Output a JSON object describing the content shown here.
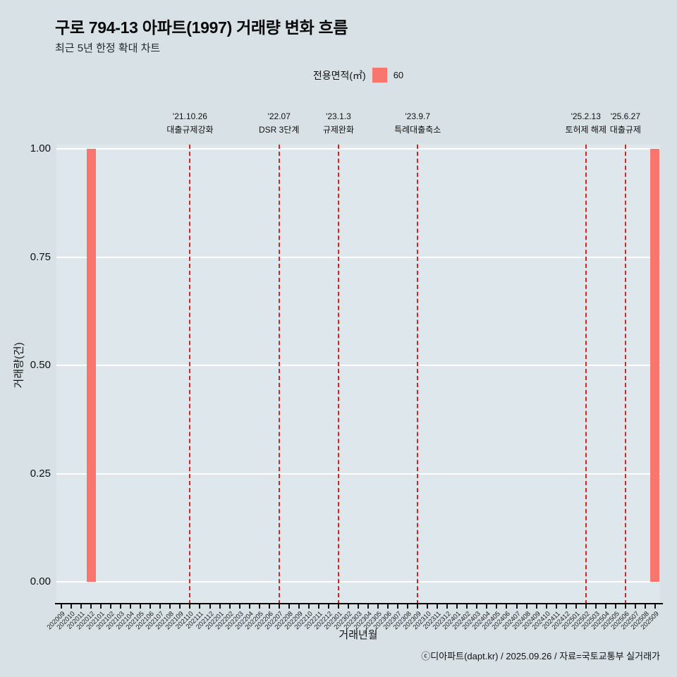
{
  "header": {
    "title": "구로 794-13 아파트(1997) 거래량 변화 흐름",
    "subtitle": "최근 5년 한정 확대 차트"
  },
  "legend": {
    "title": "전용면적(㎡)",
    "items": [
      {
        "label": "60",
        "color": "#F8766D"
      }
    ]
  },
  "colors": {
    "background": "#d8e1e6",
    "panel": "#dee7eb",
    "bar": "#F8766D",
    "event_line": "#e02020",
    "gridline": "#ffffff",
    "axis": "#000000"
  },
  "chart_data": {
    "type": "bar",
    "title": "구로 794-13 아파트(1997) 거래량 변화 흐름",
    "subtitle": "최근 5년 한정 확대 차트",
    "xlabel": "거래년월",
    "ylabel": "거래량(건)",
    "ylim": [
      0,
      1
    ],
    "ytick_values": [
      0,
      0.25,
      0.5,
      0.75,
      1
    ],
    "ytick_labels": [
      "0.00",
      "0.25",
      "0.50",
      "0.75",
      "1.00"
    ],
    "grid": true,
    "legend_position": "top",
    "categories": [
      "202009",
      "202010",
      "202011",
      "202012",
      "202101",
      "202102",
      "202103",
      "202104",
      "202105",
      "202106",
      "202107",
      "202108",
      "202109",
      "202110",
      "202111",
      "202112",
      "202201",
      "202202",
      "202203",
      "202204",
      "202205",
      "202206",
      "202207",
      "202208",
      "202209",
      "202210",
      "202211",
      "202212",
      "202301",
      "202302",
      "202303",
      "202304",
      "202305",
      "202306",
      "202307",
      "202308",
      "202309",
      "202310",
      "202311",
      "202312",
      "202401",
      "202402",
      "202403",
      "202404",
      "202405",
      "202406",
      "202407",
      "202408",
      "202409",
      "202410",
      "202411",
      "202412",
      "202501",
      "202502",
      "202503",
      "202504",
      "202505",
      "202506",
      "202507",
      "202508",
      "202509"
    ],
    "series": [
      {
        "name": "60",
        "color": "#F8766D",
        "values": [
          0,
          0,
          0,
          1,
          0,
          0,
          0,
          0,
          0,
          0,
          0,
          0,
          0,
          0,
          0,
          0,
          0,
          0,
          0,
          0,
          0,
          0,
          0,
          0,
          0,
          0,
          0,
          0,
          0,
          0,
          0,
          0,
          0,
          0,
          0,
          0,
          0,
          0,
          0,
          0,
          0,
          0,
          0,
          0,
          0,
          0,
          0,
          0,
          0,
          0,
          0,
          0,
          0,
          0,
          0,
          0,
          0,
          0,
          0,
          0,
          1
        ]
      }
    ],
    "annotations": [
      {
        "category": "202110",
        "date": "'21.10.26",
        "label": "대출규제강화"
      },
      {
        "category": "202207",
        "date": "'22.07",
        "label": "DSR 3단계"
      },
      {
        "category": "202301",
        "date": "'23.1.3",
        "label": "규제완화"
      },
      {
        "category": "202309",
        "date": "'23.9.7",
        "label": "특례대출축소"
      },
      {
        "category": "202502",
        "date": "'25.2.13",
        "label": "토허제 해제"
      },
      {
        "category": "202506",
        "date": "'25.6.27",
        "label": "대출규제"
      }
    ]
  },
  "footer": {
    "credit": "ⓒ디아파트(dapt.kr) / 2025.09.26 / 자료=국토교통부 실거래가"
  }
}
